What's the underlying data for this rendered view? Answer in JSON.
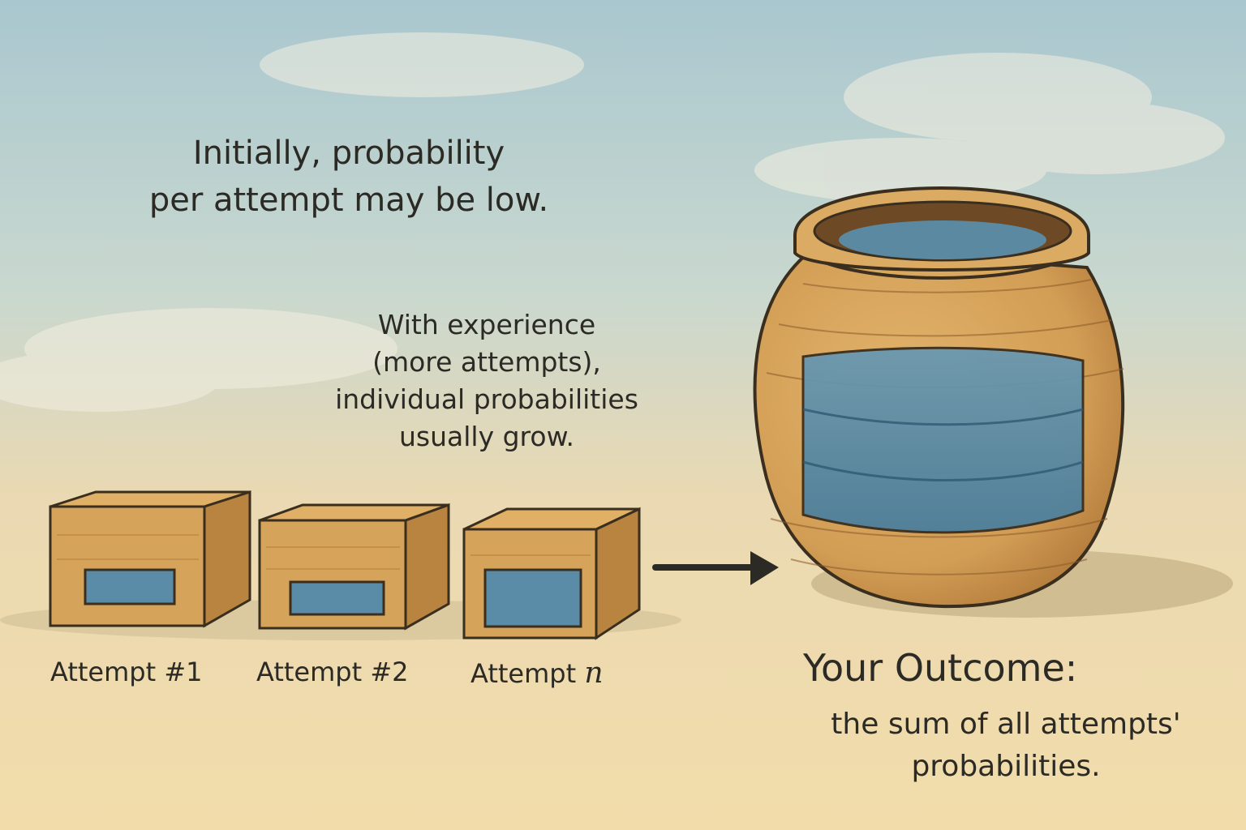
{
  "intro_text": [
    "Initially, probability",
    "per attempt may be low."
  ],
  "experience_text": [
    "With experience",
    "(more attempts),",
    "individual probabilities",
    "usually grow."
  ],
  "attempts": [
    {
      "label": "Attempt #1"
    },
    {
      "label": "Attempt #2"
    },
    {
      "label_prefix": "Attempt ",
      "label_var": "n"
    }
  ],
  "outcome": {
    "title": "Your Outcome:",
    "description": [
      "the sum of all attempts'",
      "probabilities."
    ]
  },
  "colors": {
    "sky": "#b9d3d6",
    "paper": "#f1ddb0",
    "wood": "#d6a35a",
    "wood_dark": "#b98340",
    "water": "#5a8ca8",
    "ink": "#2b2a24"
  },
  "icons": {
    "boxes": "wooden-crate-icon",
    "arrow": "right-arrow-icon",
    "pot": "clay-pot-icon"
  }
}
